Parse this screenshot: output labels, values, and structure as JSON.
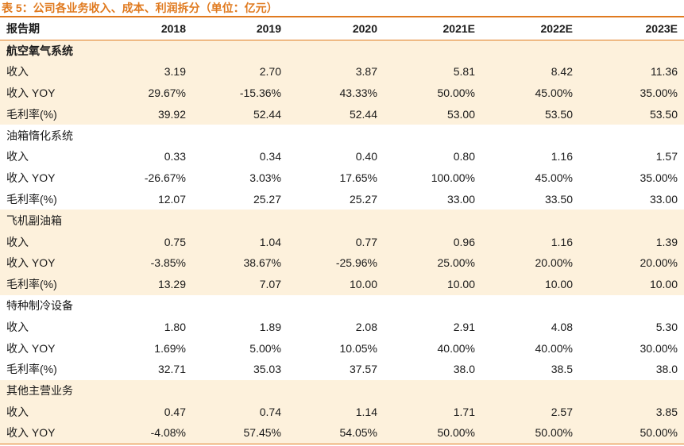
{
  "caption": "表 5：公司各业务收入、成本、利润拆分（单位：亿元）",
  "header": [
    "报告期",
    "2018",
    "2019",
    "2020",
    "2021E",
    "2022E",
    "2023E"
  ],
  "segments": [
    {
      "title": "航空氧气系统",
      "rows": [
        {
          "label": "收入",
          "values": [
            "3.19",
            "2.70",
            "3.87",
            "5.81",
            "8.42",
            "11.36"
          ]
        },
        {
          "label": "收入 YOY",
          "values": [
            "29.67%",
            "-15.36%",
            "43.33%",
            "50.00%",
            "45.00%",
            "35.00%"
          ]
        },
        {
          "label": "毛利率(%)",
          "values": [
            "39.92",
            "52.44",
            "52.44",
            "53.00",
            "53.50",
            "53.50"
          ]
        }
      ]
    },
    {
      "title": "油箱惰化系统",
      "rows": [
        {
          "label": "收入",
          "values": [
            "0.33",
            "0.34",
            "0.40",
            "0.80",
            "1.16",
            "1.57"
          ]
        },
        {
          "label": "收入 YOY",
          "values": [
            "-26.67%",
            "3.03%",
            "17.65%",
            "100.00%",
            "45.00%",
            "35.00%"
          ]
        },
        {
          "label": "毛利率(%)",
          "values": [
            "12.07",
            "25.27",
            "25.27",
            "33.00",
            "33.50",
            "33.00"
          ]
        }
      ]
    },
    {
      "title": "飞机副油箱",
      "rows": [
        {
          "label": "收入",
          "values": [
            "0.75",
            "1.04",
            "0.77",
            "0.96",
            "1.16",
            "1.39"
          ]
        },
        {
          "label": "收入 YOY",
          "values": [
            "-3.85%",
            "38.67%",
            "-25.96%",
            "25.00%",
            "20.00%",
            "20.00%"
          ]
        },
        {
          "label": "毛利率(%)",
          "values": [
            "13.29",
            "7.07",
            "10.00",
            "10.00",
            "10.00",
            "10.00"
          ]
        }
      ]
    },
    {
      "title": "特种制冷设备",
      "rows": [
        {
          "label": "收入",
          "values": [
            "1.80",
            "1.89",
            "2.08",
            "2.91",
            "4.08",
            "5.30"
          ]
        },
        {
          "label": "收入 YOY",
          "values": [
            "1.69%",
            "5.00%",
            "10.05%",
            "40.00%",
            "40.00%",
            "30.00%"
          ]
        },
        {
          "label": "毛利率(%)",
          "values": [
            "32.71",
            "35.03",
            "37.57",
            "38.0",
            "38.5",
            "38.0"
          ]
        }
      ]
    },
    {
      "title": "其他主营业务",
      "rows": [
        {
          "label": "收入",
          "values": [
            "0.47",
            "0.74",
            "1.14",
            "1.71",
            "2.57",
            "3.85"
          ]
        },
        {
          "label": "收入 YOY",
          "values": [
            "-4.08%",
            "57.45%",
            "54.05%",
            "50.00%",
            "50.00%",
            "50.00%"
          ]
        }
      ]
    }
  ],
  "colors": {
    "accent": "#e07a1f",
    "shade": "#fdf1dc"
  }
}
